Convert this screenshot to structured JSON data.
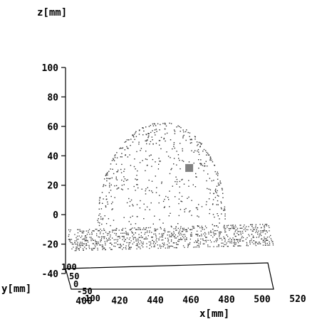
{
  "chart_data": {
    "type": "scatter",
    "title": "",
    "zlabel": "z[mm]",
    "xlabel": "x[mm]",
    "ylabel": "y[mm]",
    "z_ticks": [
      100,
      80,
      60,
      40,
      20,
      0,
      -20,
      -40
    ],
    "x_ticks": [
      400,
      420,
      440,
      460,
      480,
      500,
      520
    ],
    "y_ticks": [
      100,
      50,
      0,
      -50,
      -100
    ],
    "zlim": [
      -40,
      100
    ],
    "xlim": [
      400,
      520
    ],
    "ylim": [
      -100,
      100
    ],
    "grid": false,
    "marker": {
      "x": 472,
      "y": 20,
      "z": 35
    },
    "series": [
      {
        "shape": "dome",
        "center_x": 455,
        "center_y": 0,
        "z_range": [
          0,
          68
        ],
        "point_count": 520
      },
      {
        "shape": "plane",
        "z": -10,
        "x_range": [
          400,
          520
        ],
        "y_range": [
          -100,
          100
        ],
        "point_count": 900
      }
    ],
    "colors": {
      "points": "#333333",
      "marker": "#808080",
      "axes": "#000000"
    }
  }
}
